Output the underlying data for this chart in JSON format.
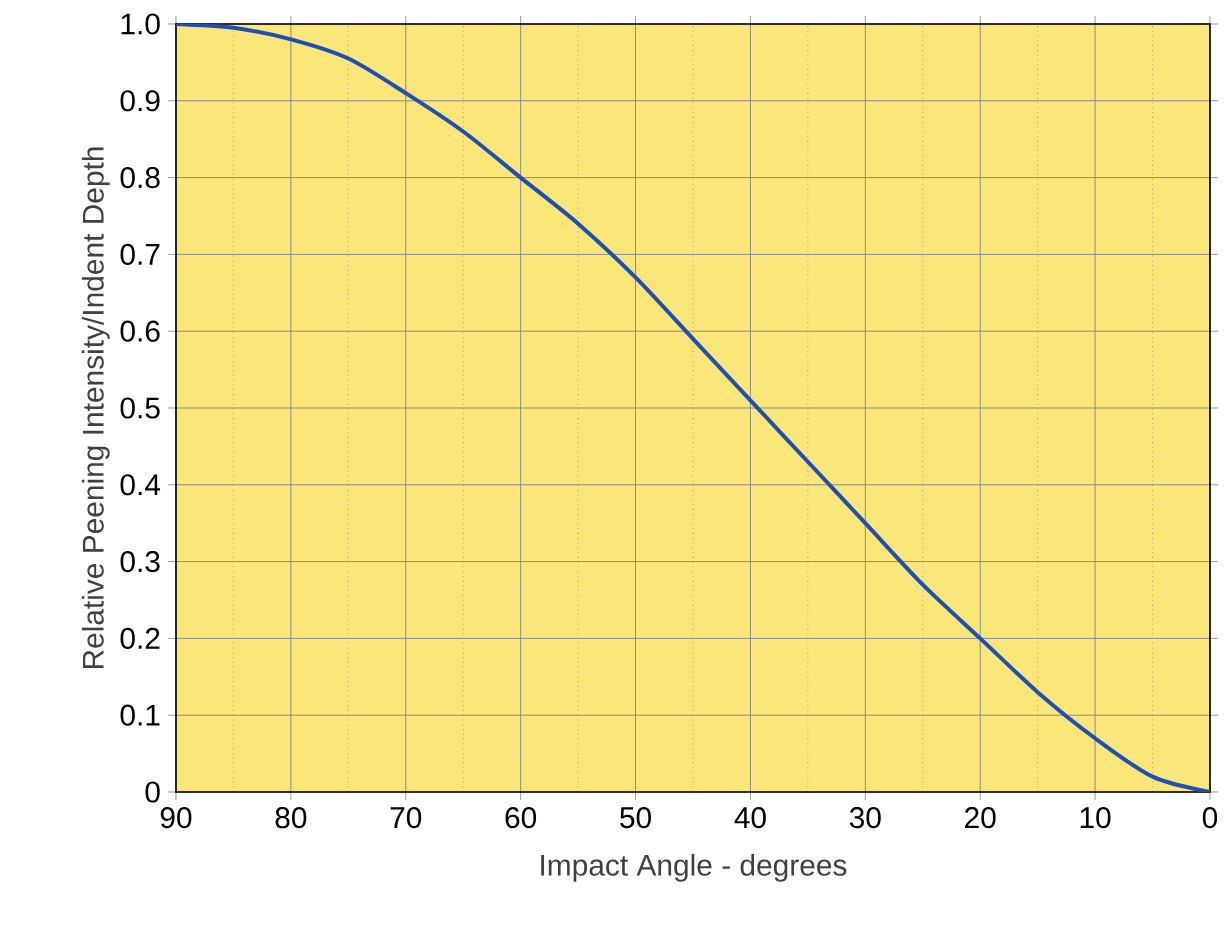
{
  "chart_data": {
    "type": "line",
    "xlabel": "Impact Angle - degrees",
    "ylabel": "Relative Peening Intensity/Indent Depth",
    "x": [
      90,
      85,
      80,
      75,
      70,
      65,
      60,
      55,
      50,
      45,
      40,
      35,
      30,
      25,
      20,
      15,
      10,
      5,
      0
    ],
    "series": [
      {
        "color": "#1f4fb4",
        "values": [
          1.0,
          0.995,
          0.98,
          0.955,
          0.91,
          0.86,
          0.8,
          0.74,
          0.67,
          0.59,
          0.51,
          0.43,
          0.35,
          0.27,
          0.2,
          0.13,
          0.07,
          0.02,
          0.0
        ]
      }
    ],
    "xlim": [
      90,
      0
    ],
    "ylim": [
      0,
      1.0
    ],
    "xticks": [
      90,
      {
        "value": 85,
        "label": null
      },
      80,
      {
        "value": 75,
        "label": null
      },
      70,
      {
        "value": 65,
        "label": null
      },
      60,
      {
        "value": 55,
        "label": null
      },
      50,
      {
        "value": 45,
        "label": null
      },
      40,
      {
        "value": 35,
        "label": null
      },
      30,
      {
        "value": 25,
        "label": null
      },
      20,
      {
        "value": 15,
        "label": null
      },
      10,
      {
        "value": 5,
        "label": null
      },
      0
    ],
    "yticks": [
      0,
      0.1,
      0.2,
      0.3,
      0.4,
      0.5,
      0.6,
      0.7,
      0.8,
      0.9,
      {
        "value": 1.0,
        "label": "1.0"
      }
    ],
    "grid": true,
    "marker": "none",
    "line_style": "solid"
  }
}
